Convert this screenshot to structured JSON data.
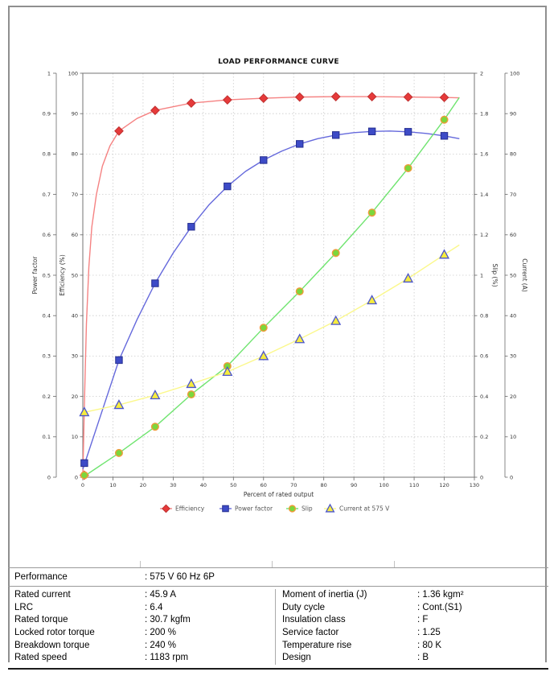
{
  "chart_data": {
    "type": "line",
    "title": "LOAD PERFORMANCE CURVE",
    "xlabel": "Percent of rated output",
    "x_range": [
      0,
      130
    ],
    "x_tick_step": 10,
    "grid": true,
    "legend_position": "bottom",
    "plot_border_color": "#808080",
    "grid_color": "#cbcbcb",
    "axes": {
      "power_factor": {
        "label": "Power factor",
        "side": "left-outer",
        "range": [
          0,
          1
        ],
        "tick_step": 0.1
      },
      "efficiency": {
        "label": "Efficiency (%)",
        "side": "left-inner",
        "range": [
          0,
          100
        ],
        "tick_step": 10
      },
      "slip": {
        "label": "Slip (%)",
        "side": "right-inner",
        "range": [
          0,
          2
        ],
        "tick_step": 0.2
      },
      "current": {
        "label": "Current (A)",
        "side": "right-outer",
        "range": [
          0,
          100
        ],
        "tick_step": 10
      }
    },
    "series": [
      {
        "name": "Efficiency",
        "axis": "efficiency",
        "marker": "diamond",
        "marker_fill": "#e63a3a",
        "marker_stroke": "#bf2f2f",
        "line_color": "#f58282",
        "x": [
          0.5,
          12,
          24,
          36,
          48,
          60,
          72,
          84,
          96,
          108,
          120
        ],
        "y": [
          0.5,
          85.7,
          90.8,
          92.6,
          93.4,
          93.8,
          94.1,
          94.2,
          94.2,
          94.1,
          94.0
        ],
        "curve_x": [
          0,
          0.6,
          1.2,
          2,
          3,
          4.5,
          6.5,
          9,
          12,
          18,
          24,
          36,
          48,
          60,
          72,
          84,
          96,
          108,
          120,
          125
        ],
        "curve_y": [
          0,
          20,
          38,
          52,
          62,
          70,
          77,
          82,
          85.7,
          88.8,
          90.8,
          92.6,
          93.4,
          93.8,
          94.1,
          94.2,
          94.2,
          94.1,
          94.0,
          93.9
        ]
      },
      {
        "name": "Power factor",
        "axis": "power_factor",
        "marker": "square",
        "marker_fill": "#3d4bc7",
        "marker_stroke": "#252e8f",
        "line_color": "#6569dc",
        "x": [
          0.5,
          12,
          24,
          36,
          48,
          60,
          72,
          84,
          96,
          108,
          120
        ],
        "y": [
          0.035,
          0.29,
          0.48,
          0.62,
          0.72,
          0.785,
          0.825,
          0.847,
          0.856,
          0.855,
          0.845
        ],
        "curve_x": [
          0,
          6,
          12,
          18,
          24,
          30,
          36,
          42,
          48,
          54,
          60,
          66,
          72,
          78,
          84,
          90,
          96,
          102,
          108,
          114,
          120,
          125
        ],
        "curve_y": [
          0.02,
          0.155,
          0.29,
          0.39,
          0.48,
          0.555,
          0.62,
          0.675,
          0.72,
          0.757,
          0.785,
          0.807,
          0.825,
          0.838,
          0.847,
          0.853,
          0.856,
          0.857,
          0.855,
          0.851,
          0.845,
          0.838
        ]
      },
      {
        "name": "Slip",
        "axis": "slip",
        "marker": "circle",
        "marker_fill": "#7bd73c",
        "marker_stroke": "#f09a3a",
        "line_color": "#6fe46f",
        "x": [
          0.5,
          12,
          24,
          36,
          48,
          60,
          72,
          84,
          96,
          108,
          120
        ],
        "y": [
          0.01,
          0.12,
          0.25,
          0.41,
          0.55,
          0.74,
          0.92,
          1.11,
          1.31,
          1.53,
          1.77
        ],
        "curve_x": [
          0,
          12,
          24,
          36,
          48,
          60,
          72,
          84,
          96,
          108,
          120,
          125
        ],
        "curve_y": [
          0,
          0.12,
          0.25,
          0.41,
          0.55,
          0.74,
          0.92,
          1.11,
          1.31,
          1.53,
          1.77,
          1.88
        ]
      },
      {
        "name": "Current at 575 V",
        "axis": "current",
        "marker": "triangle",
        "marker_fill": "#f6ec3e",
        "marker_stroke": "#4b55cc",
        "line_color": "#fbf88b",
        "x": [
          0.5,
          12,
          24,
          36,
          48,
          60,
          72,
          84,
          96,
          108,
          120
        ],
        "y": [
          16.1,
          17.9,
          20.3,
          23.1,
          26.1,
          30.0,
          34.2,
          38.7,
          43.8,
          49.2,
          55.1
        ],
        "curve_x": [
          0,
          12,
          24,
          36,
          48,
          60,
          72,
          84,
          96,
          108,
          120,
          125
        ],
        "curve_y": [
          16.0,
          17.9,
          20.3,
          23.1,
          26.1,
          30.0,
          34.2,
          38.7,
          43.8,
          49.2,
          55.1,
          57.5
        ]
      }
    ]
  },
  "table": {
    "performance_label": "Performance",
    "performance_value": ": 575 V 60 Hz 6P",
    "left_rows": [
      {
        "label": "Rated current",
        "value": ": 45.9 A"
      },
      {
        "label": "LRC",
        "value": ": 6.4"
      },
      {
        "label": "Rated torque",
        "value": ": 30.7 kgfm"
      },
      {
        "label": "Locked rotor torque",
        "value": ": 200 %"
      },
      {
        "label": "Breakdown torque",
        "value": ": 240 %"
      },
      {
        "label": "Rated speed",
        "value": ": 1183 rpm"
      }
    ],
    "right_rows": [
      {
        "label": "Moment of inertia (J)",
        "value": ": 1.36 kgm²"
      },
      {
        "label": "Duty cycle",
        "value": ": Cont.(S1)"
      },
      {
        "label": "Insulation class",
        "value": ": F"
      },
      {
        "label": "Service factor",
        "value": ": 1.25"
      },
      {
        "label": "Temperature rise",
        "value": ": 80 K"
      },
      {
        "label": "Design",
        "value": ": B"
      }
    ]
  }
}
